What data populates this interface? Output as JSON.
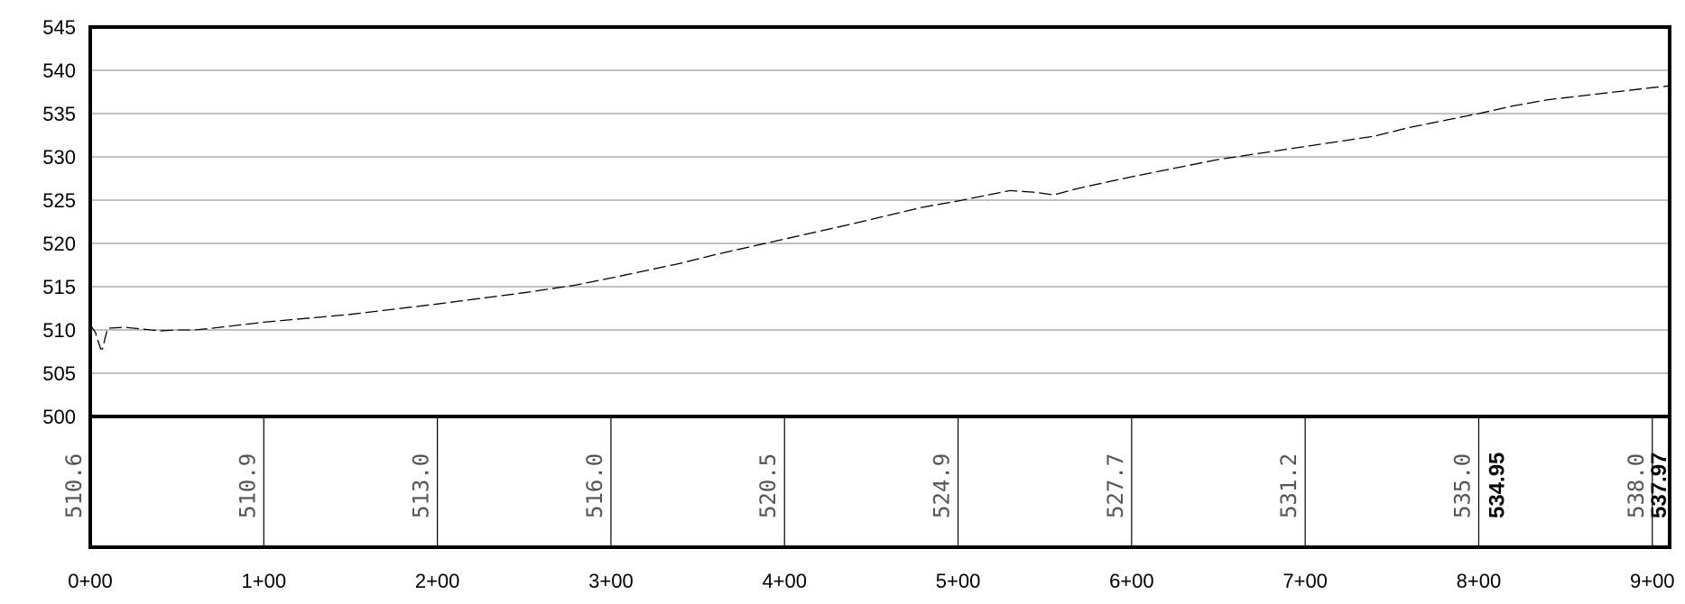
{
  "chart_data": {
    "type": "line",
    "xlabel": "",
    "ylabel": "",
    "grid": true,
    "ylim": [
      500,
      545
    ],
    "xlim": [
      0,
      910
    ],
    "yticks": [
      500,
      505,
      510,
      515,
      520,
      525,
      530,
      535,
      540,
      545
    ],
    "xticks": [
      {
        "x": 0,
        "label": "0+00"
      },
      {
        "x": 100,
        "label": "1+00"
      },
      {
        "x": 200,
        "label": "2+00"
      },
      {
        "x": 300,
        "label": "3+00"
      },
      {
        "x": 400,
        "label": "4+00"
      },
      {
        "x": 500,
        "label": "5+00"
      },
      {
        "x": 600,
        "label": "6+00"
      },
      {
        "x": 700,
        "label": "7+00"
      },
      {
        "x": 800,
        "label": "8+00"
      },
      {
        "x": 900,
        "label": "9+00"
      }
    ],
    "series": [
      {
        "style": "dashed",
        "color": "#000000",
        "x": [
          0,
          3,
          6,
          7,
          10,
          20,
          30,
          40,
          50,
          60,
          70,
          100,
          150,
          200,
          250,
          280,
          300,
          340,
          360,
          400,
          440,
          480,
          500,
          530,
          545,
          555,
          570,
          600,
          650,
          700,
          740,
          760,
          800,
          820,
          840,
          870,
          900,
          910
        ],
        "y": [
          510.6,
          509.7,
          507.8,
          507.8,
          510.2,
          510.3,
          510.1,
          509.9,
          510.0,
          510.0,
          510.2,
          510.9,
          511.8,
          513.0,
          514.3,
          515.2,
          516.0,
          517.7,
          518.7,
          520.5,
          522.3,
          524.2,
          524.9,
          526.1,
          525.9,
          525.6,
          526.4,
          527.7,
          529.7,
          531.2,
          532.4,
          533.4,
          535.0,
          535.9,
          536.6,
          537.3,
          538.0,
          538.2
        ]
      }
    ],
    "elevation_labels": [
      {
        "x": 0,
        "label": "510.6"
      },
      {
        "x": 100,
        "label": "510.9"
      },
      {
        "x": 200,
        "label": "513.0"
      },
      {
        "x": 300,
        "label": "516.0"
      },
      {
        "x": 400,
        "label": "520.5"
      },
      {
        "x": 500,
        "label": "524.9"
      },
      {
        "x": 600,
        "label": "527.7"
      },
      {
        "x": 700,
        "label": "531.2"
      },
      {
        "x": 800,
        "label": "535.0"
      },
      {
        "x": 900,
        "label": "538.0"
      }
    ],
    "highlight_labels": [
      {
        "x": 802,
        "label": "534.95"
      },
      {
        "x": 906,
        "label": "537.97"
      }
    ],
    "band_dividers": [
      100,
      200,
      300,
      400,
      500,
      600,
      700,
      800,
      900
    ]
  }
}
